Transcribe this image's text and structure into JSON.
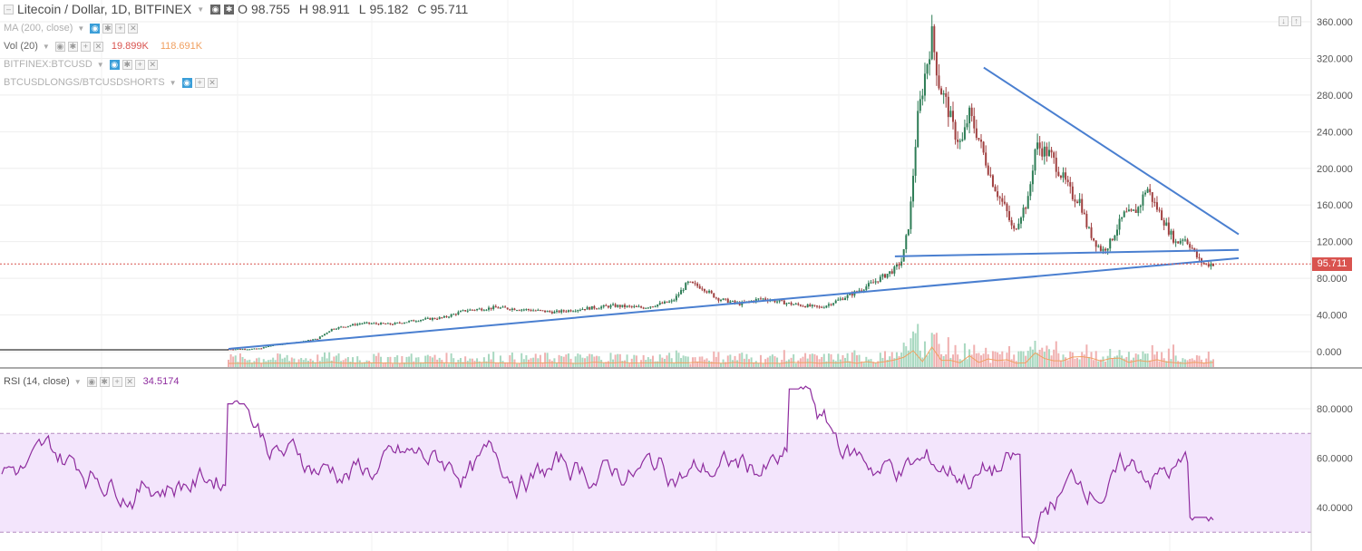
{
  "header": {
    "symbol": "Litecoin / Dollar, 1D, BITFINEX",
    "o_label": "O",
    "o_value": "98.755",
    "h_label": "H",
    "h_value": "98.911",
    "l_label": "L",
    "l_value": "95.182",
    "c_label": "C",
    "c_value": "95.711"
  },
  "indicators": [
    {
      "label": "MA (200, close)"
    },
    {
      "label": "Vol (20)",
      "value1": "19.899K",
      "value2": "118.691K"
    },
    {
      "label": "BITFINEX:BTCUSD"
    },
    {
      "label": "BTCUSDLONGS/BTCUSDSHORTS"
    }
  ],
  "rsi_legend": {
    "label": "RSI (14, close)",
    "value": "34.5174"
  },
  "last_price_tag": "95.711",
  "colors": {
    "up": "#2e7d56",
    "down": "#a04040",
    "trendline": "#4a7fd0",
    "rsi_line": "#8e2c9e",
    "rsi_band": "#f3e5fc",
    "volume_ma": "#f0a060",
    "price_line": "#d9534f"
  },
  "chart_data": [
    {
      "type": "candlestick",
      "price_axis_ticks": [
        "360.000",
        "320.000",
        "280.000",
        "240.000",
        "200.000",
        "160.000",
        "120.000",
        "80.000",
        "40.000",
        "0.000"
      ],
      "ylim": [
        -8,
        375
      ],
      "close_series_approx": [
        [
          0,
          2
        ],
        [
          10,
          3
        ],
        [
          12,
          7
        ],
        [
          15,
          10
        ],
        [
          18,
          14
        ],
        [
          20,
          25
        ],
        [
          24,
          31
        ],
        [
          28,
          30
        ],
        [
          32,
          35
        ],
        [
          35,
          37
        ],
        [
          38,
          45
        ],
        [
          42,
          48
        ],
        [
          46,
          46
        ],
        [
          50,
          43
        ],
        [
          54,
          47
        ],
        [
          58,
          50
        ],
        [
          62,
          48
        ],
        [
          66,
          55
        ],
        [
          68,
          75
        ],
        [
          70,
          70
        ],
        [
          72,
          58
        ],
        [
          75,
          52
        ],
        [
          78,
          58
        ],
        [
          82,
          52
        ],
        [
          86,
          48
        ],
        [
          90,
          62
        ],
        [
          93,
          75
        ],
        [
          95,
          85
        ],
        [
          96,
          90
        ],
        [
          97,
          100
        ],
        [
          98,
          145
        ],
        [
          99,
          250
        ],
        [
          100,
          300
        ],
        [
          101,
          345
        ],
        [
          102,
          290
        ],
        [
          103,
          270
        ],
        [
          104,
          240
        ],
        [
          105,
          225
        ],
        [
          106,
          260
        ],
        [
          107,
          240
        ],
        [
          108,
          215
        ],
        [
          109,
          190
        ],
        [
          110,
          170
        ],
        [
          111,
          155
        ],
        [
          112,
          130
        ],
        [
          113,
          150
        ],
        [
          114,
          165
        ],
        [
          115,
          225
        ],
        [
          116,
          220
        ],
        [
          117,
          215
        ],
        [
          118,
          200
        ],
        [
          119,
          185
        ],
        [
          120,
          170
        ],
        [
          121,
          165
        ],
        [
          122,
          135
        ],
        [
          123,
          120
        ],
        [
          124,
          110
        ],
        [
          125,
          118
        ],
        [
          126,
          135
        ],
        [
          127,
          150
        ],
        [
          128,
          150
        ],
        [
          129,
          158
        ],
        [
          130,
          180
        ],
        [
          131,
          162
        ],
        [
          132,
          148
        ],
        [
          133,
          132
        ],
        [
          134,
          118
        ],
        [
          135,
          125
        ],
        [
          136,
          115
        ],
        [
          137,
          100
        ],
        [
          138,
          95
        ],
        [
          139,
          96
        ]
      ],
      "trendlines": [
        {
          "name": "upper-descending",
          "from": [
            108,
            310
          ],
          "to": [
            139,
            128
          ]
        },
        {
          "name": "horizontal-support",
          "from": [
            96,
            104
          ],
          "to": [
            139,
            111
          ]
        },
        {
          "name": "ascending-support",
          "from": [
            6,
            3
          ],
          "to": [
            139,
            102
          ]
        }
      ],
      "last_close": 95.711
    },
    {
      "type": "line",
      "name": "RSI (14, close)",
      "yticks": [
        "80.0000",
        "60.0000",
        "40.0000"
      ],
      "ylim": [
        20,
        95
      ],
      "bands": {
        "upper": 70,
        "lower": 30
      },
      "last_value": 34.5174
    }
  ]
}
